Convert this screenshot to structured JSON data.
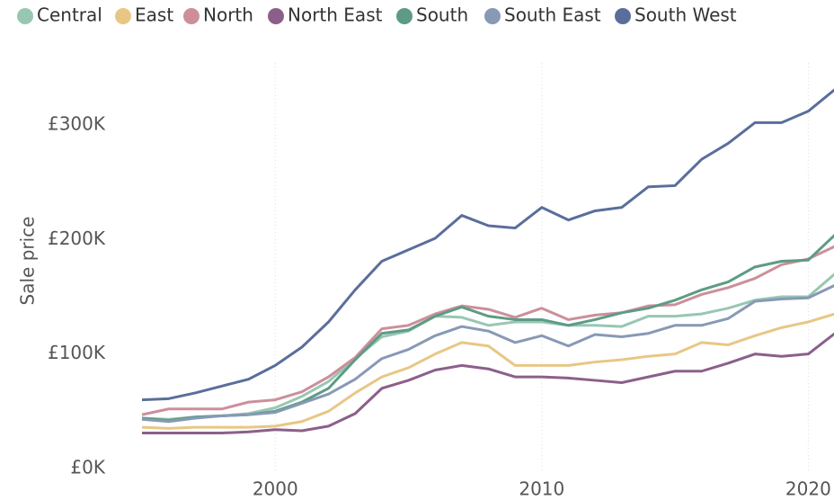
{
  "chart_data": {
    "type": "line",
    "y_label": "Sale price",
    "x": [
      1995,
      1996,
      1997,
      1998,
      1999,
      2000,
      2001,
      2002,
      2003,
      2004,
      2005,
      2006,
      2007,
      2008,
      2009,
      2010,
      2011,
      2012,
      2013,
      2014,
      2015,
      2016,
      2017,
      2018,
      2019,
      2020,
      2021
    ],
    "xlim": [
      1995,
      2021
    ],
    "xticks": [
      2000,
      2010,
      2020
    ],
    "ylim": [
      0,
      340000
    ],
    "yticks": [
      {
        "value": 0,
        "label": "£0K"
      },
      {
        "value": 100000,
        "label": "£100K"
      },
      {
        "value": 200000,
        "label": "£200K"
      },
      {
        "value": 300000,
        "label": "£300K"
      }
    ],
    "grid": true,
    "legend": "top",
    "series": [
      {
        "name": "Central",
        "color": "#97c7b3",
        "values": [
          44000,
          43000,
          45000,
          46000,
          48000,
          53000,
          63000,
          76000,
          96000,
          115000,
          120000,
          133000,
          132000,
          125000,
          128000,
          128000,
          125000,
          125000,
          124000,
          133000,
          133000,
          135000,
          140000,
          147000,
          150000,
          150000,
          170000
        ]
      },
      {
        "name": "East",
        "color": "#e8c785",
        "values": [
          36000,
          35000,
          36000,
          36000,
          36000,
          37000,
          41000,
          50000,
          66000,
          80000,
          88000,
          100000,
          110000,
          107000,
          90000,
          90000,
          90000,
          93000,
          95000,
          98000,
          100000,
          110000,
          108000,
          116000,
          123000,
          128000,
          135000
        ]
      },
      {
        "name": "North",
        "color": "#cc8f9a",
        "values": [
          47000,
          52000,
          52000,
          52000,
          58000,
          60000,
          67000,
          80000,
          97000,
          122000,
          125000,
          135000,
          142000,
          139000,
          132000,
          140000,
          130000,
          134000,
          136000,
          142000,
          143000,
          152000,
          158000,
          166000,
          178000,
          183000,
          194000
        ]
      },
      {
        "name": "North East",
        "color": "#8c5f8a",
        "values": [
          31000,
          31000,
          31000,
          31000,
          32000,
          34000,
          33000,
          37000,
          48000,
          70000,
          77000,
          86000,
          90000,
          87000,
          80000,
          80000,
          79000,
          77000,
          75000,
          80000,
          85000,
          85000,
          92000,
          100000,
          98000,
          100000,
          118000
        ]
      },
      {
        "name": "South",
        "color": "#5d9b85",
        "values": [
          44000,
          42000,
          45000,
          46000,
          47000,
          50000,
          58000,
          70000,
          95000,
          118000,
          121000,
          133000,
          141000,
          133000,
          130000,
          130000,
          125000,
          130000,
          136000,
          140000,
          147000,
          156000,
          163000,
          176000,
          181000,
          182000,
          204000
        ]
      },
      {
        "name": "South East",
        "color": "#8799b5",
        "values": [
          43000,
          41000,
          44000,
          46000,
          47000,
          49000,
          57000,
          65000,
          78000,
          96000,
          104000,
          116000,
          124000,
          120000,
          110000,
          116000,
          107000,
          117000,
          115000,
          118000,
          125000,
          125000,
          131000,
          146000,
          148000,
          149000,
          160000
        ]
      },
      {
        "name": "South West",
        "color": "#5a6e9c",
        "values": [
          60000,
          61000,
          66000,
          72000,
          78000,
          90000,
          106000,
          128000,
          156000,
          181000,
          191000,
          201000,
          221000,
          212000,
          210000,
          228000,
          217000,
          225000,
          228000,
          246000,
          247000,
          270000,
          284000,
          302000,
          302000,
          312000,
          331000
        ]
      }
    ]
  }
}
